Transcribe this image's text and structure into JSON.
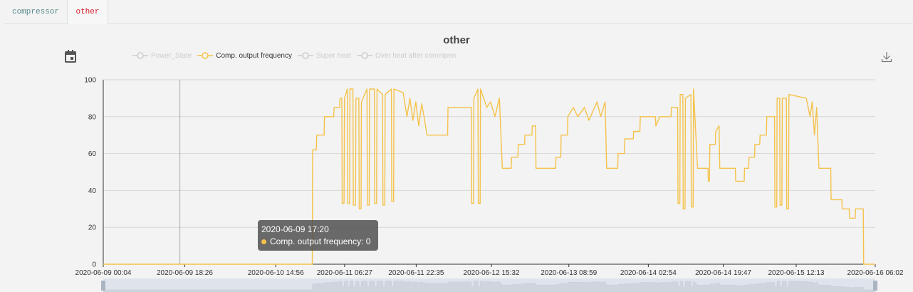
{
  "tabs": [
    {
      "label": "compressor",
      "active": false
    },
    {
      "label": "other",
      "active": true
    }
  ],
  "chart_title": "other",
  "icons": {
    "calendar": "calendar-icon",
    "download": "download-icon"
  },
  "colors": {
    "series_active": "#f4c24a",
    "legend_inactive": "#cccccc",
    "active_tab": "#d4202c"
  },
  "legend": [
    {
      "name": "Power_State",
      "active": false
    },
    {
      "name": "Comp. output frequency",
      "active": true
    },
    {
      "name": "Super heat",
      "active": false
    },
    {
      "name": "Over heat after commpen",
      "active": false
    }
  ],
  "tooltip": {
    "time": "2020-06-09 17:20",
    "series": "Comp. output frequency",
    "value": 0,
    "text": "Comp. output frequency: 0"
  },
  "chart_data": {
    "type": "line",
    "title": "other",
    "ylim": [
      0,
      100
    ],
    "yticks": [
      0,
      20,
      40,
      60,
      80,
      100
    ],
    "xticks": [
      "2020-06-09 00:04",
      "2020-06-09 18:26",
      "2020-06-10 14:56",
      "2020-06-11 06:27",
      "2020-06-11 22:35",
      "2020-06-12 15:32",
      "2020-06-13 08:59",
      "2020-06-14 02:54",
      "2020-06-14 19:47",
      "2020-06-15 12:13",
      "2020-06-16 06:02"
    ],
    "xlim": [
      "2020-06-09 00:04",
      "2020-06-16 06:02"
    ],
    "grid": true,
    "legend_position": "top",
    "hover_time": "2020-06-09 17:20",
    "series": [
      {
        "name": "Comp. output frequency",
        "points": [
          [
            "2020-06-09 00:04",
            0
          ],
          [
            "2020-06-10 23:10",
            0
          ],
          [
            "2020-06-10 23:15",
            62
          ],
          [
            "2020-06-11 00:05",
            62
          ],
          [
            "2020-06-11 00:10",
            70
          ],
          [
            "2020-06-11 01:50",
            70
          ],
          [
            "2020-06-11 01:55",
            80
          ],
          [
            "2020-06-11 04:00",
            80
          ],
          [
            "2020-06-11 04:05",
            85
          ],
          [
            "2020-06-11 05:20",
            85
          ],
          [
            "2020-06-11 05:25",
            90
          ],
          [
            "2020-06-11 05:50",
            90
          ],
          [
            "2020-06-11 05:55",
            33
          ],
          [
            "2020-06-11 06:20",
            33
          ],
          [
            "2020-06-11 06:25",
            90
          ],
          [
            "2020-06-11 07:05",
            95
          ],
          [
            "2020-06-11 07:10",
            33
          ],
          [
            "2020-06-11 07:35",
            33
          ],
          [
            "2020-06-11 07:40",
            95
          ],
          [
            "2020-06-11 08:20",
            95
          ],
          [
            "2020-06-11 08:25",
            32
          ],
          [
            "2020-06-11 08:55",
            32
          ],
          [
            "2020-06-11 09:00",
            90
          ],
          [
            "2020-06-11 09:40",
            90
          ],
          [
            "2020-06-11 09:45",
            30
          ],
          [
            "2020-06-11 10:10",
            30
          ],
          [
            "2020-06-11 10:15",
            88
          ],
          [
            "2020-06-11 11:30",
            95
          ],
          [
            "2020-06-11 11:35",
            32
          ],
          [
            "2020-06-11 12:00",
            32
          ],
          [
            "2020-06-11 12:05",
            95
          ],
          [
            "2020-06-11 13:10",
            95
          ],
          [
            "2020-06-11 13:15",
            33
          ],
          [
            "2020-06-11 13:40",
            33
          ],
          [
            "2020-06-11 13:45",
            95
          ],
          [
            "2020-06-11 15:00",
            92
          ],
          [
            "2020-06-11 15:05",
            32
          ],
          [
            "2020-06-11 15:30",
            32
          ],
          [
            "2020-06-11 15:35",
            92
          ],
          [
            "2020-06-11 17:00",
            95
          ],
          [
            "2020-06-11 17:05",
            34
          ],
          [
            "2020-06-11 17:30",
            34
          ],
          [
            "2020-06-11 17:35",
            95
          ],
          [
            "2020-06-11 19:40",
            93
          ],
          [
            "2020-06-11 20:30",
            80
          ],
          [
            "2020-06-11 21:10",
            90
          ],
          [
            "2020-06-11 21:50",
            78
          ],
          [
            "2020-06-11 22:30",
            88
          ],
          [
            "2020-06-11 23:10",
            75
          ],
          [
            "2020-06-11 23:50",
            87
          ],
          [
            "2020-06-12 00:30",
            78
          ],
          [
            "2020-06-12 01:00",
            70
          ],
          [
            "2020-06-12 05:40",
            70
          ],
          [
            "2020-06-12 05:45",
            85
          ],
          [
            "2020-06-12 11:00",
            85
          ],
          [
            "2020-06-12 11:05",
            33
          ],
          [
            "2020-06-12 11:30",
            33
          ],
          [
            "2020-06-12 11:35",
            90
          ],
          [
            "2020-06-12 12:30",
            95
          ],
          [
            "2020-06-12 12:35",
            33
          ],
          [
            "2020-06-12 13:00",
            33
          ],
          [
            "2020-06-12 13:05",
            95
          ],
          [
            "2020-06-12 14:30",
            85
          ],
          [
            "2020-06-12 15:20",
            88
          ],
          [
            "2020-06-12 16:20",
            80
          ],
          [
            "2020-06-12 17:20",
            90
          ],
          [
            "2020-06-12 18:00",
            52
          ],
          [
            "2020-06-12 20:00",
            52
          ],
          [
            "2020-06-12 20:05",
            58
          ],
          [
            "2020-06-12 21:30",
            58
          ],
          [
            "2020-06-12 21:35",
            65
          ],
          [
            "2020-06-12 23:00",
            65
          ],
          [
            "2020-06-12 23:05",
            70
          ],
          [
            "2020-06-13 00:40",
            70
          ],
          [
            "2020-06-13 00:45",
            75
          ],
          [
            "2020-06-13 01:30",
            75
          ],
          [
            "2020-06-13 01:35",
            52
          ],
          [
            "2020-06-13 06:00",
            52
          ],
          [
            "2020-06-13 06:05",
            58
          ],
          [
            "2020-06-13 07:10",
            58
          ],
          [
            "2020-06-13 07:15",
            70
          ],
          [
            "2020-06-13 08:40",
            70
          ],
          [
            "2020-06-13 08:45",
            80
          ],
          [
            "2020-06-13 10:00",
            85
          ],
          [
            "2020-06-13 11:00",
            80
          ],
          [
            "2020-06-13 12:30",
            85
          ],
          [
            "2020-06-13 13:30",
            78
          ],
          [
            "2020-06-13 15:20",
            88
          ],
          [
            "2020-06-13 16:10",
            80
          ],
          [
            "2020-06-13 17:10",
            88
          ],
          [
            "2020-06-13 17:30",
            52
          ],
          [
            "2020-06-13 20:00",
            52
          ],
          [
            "2020-06-13 20:05",
            60
          ],
          [
            "2020-06-13 21:30",
            60
          ],
          [
            "2020-06-13 21:35",
            68
          ],
          [
            "2020-06-13 23:30",
            68
          ],
          [
            "2020-06-13 23:35",
            72
          ],
          [
            "2020-06-14 01:00",
            72
          ],
          [
            "2020-06-14 01:05",
            80
          ],
          [
            "2020-06-14 04:30",
            80
          ],
          [
            "2020-06-14 04:35",
            75
          ],
          [
            "2020-06-14 05:30",
            80
          ],
          [
            "2020-06-14 08:00",
            80
          ],
          [
            "2020-06-14 08:05",
            85
          ],
          [
            "2020-06-14 09:30",
            85
          ],
          [
            "2020-06-14 09:35",
            33
          ],
          [
            "2020-06-14 10:00",
            33
          ],
          [
            "2020-06-14 10:05",
            92
          ],
          [
            "2020-06-14 10:40",
            92
          ],
          [
            "2020-06-14 10:45",
            30
          ],
          [
            "2020-06-14 11:10",
            30
          ],
          [
            "2020-06-14 11:15",
            90
          ],
          [
            "2020-06-14 12:30",
            92
          ],
          [
            "2020-06-14 12:35",
            31
          ],
          [
            "2020-06-14 13:00",
            31
          ],
          [
            "2020-06-14 13:05",
            95
          ],
          [
            "2020-06-14 14:00",
            52
          ],
          [
            "2020-06-14 16:20",
            52
          ],
          [
            "2020-06-14 16:25",
            45
          ],
          [
            "2020-06-14 16:40",
            45
          ],
          [
            "2020-06-14 16:45",
            65
          ],
          [
            "2020-06-14 18:00",
            65
          ],
          [
            "2020-06-14 18:05",
            72
          ],
          [
            "2020-06-14 18:50",
            75
          ],
          [
            "2020-06-14 19:00",
            52
          ],
          [
            "2020-06-14 22:30",
            52
          ],
          [
            "2020-06-14 22:35",
            45
          ],
          [
            "2020-06-15 00:30",
            45
          ],
          [
            "2020-06-15 00:35",
            52
          ],
          [
            "2020-06-15 01:30",
            52
          ],
          [
            "2020-06-15 01:35",
            58
          ],
          [
            "2020-06-15 02:50",
            58
          ],
          [
            "2020-06-15 02:55",
            65
          ],
          [
            "2020-06-15 04:00",
            65
          ],
          [
            "2020-06-15 04:05",
            70
          ],
          [
            "2020-06-15 05:30",
            70
          ],
          [
            "2020-06-15 05:35",
            80
          ],
          [
            "2020-06-15 07:20",
            80
          ],
          [
            "2020-06-15 07:25",
            31
          ],
          [
            "2020-06-15 07:50",
            31
          ],
          [
            "2020-06-15 07:55",
            90
          ],
          [
            "2020-06-15 08:30",
            90
          ],
          [
            "2020-06-15 08:35",
            32
          ],
          [
            "2020-06-15 09:00",
            32
          ],
          [
            "2020-06-15 09:05",
            90
          ],
          [
            "2020-06-15 10:00",
            90
          ],
          [
            "2020-06-15 10:05",
            30
          ],
          [
            "2020-06-15 10:30",
            30
          ],
          [
            "2020-06-15 10:35",
            92
          ],
          [
            "2020-06-15 14:30",
            90
          ],
          [
            "2020-06-15 15:20",
            80
          ],
          [
            "2020-06-15 15:50",
            88
          ],
          [
            "2020-06-15 16:20",
            70
          ],
          [
            "2020-06-15 16:50",
            85
          ],
          [
            "2020-06-15 17:20",
            52
          ],
          [
            "2020-06-15 20:00",
            52
          ],
          [
            "2020-06-15 20:05",
            35
          ],
          [
            "2020-06-15 22:30",
            35
          ],
          [
            "2020-06-15 22:35",
            30
          ],
          [
            "2020-06-16 00:10",
            30
          ],
          [
            "2020-06-16 00:15",
            25
          ],
          [
            "2020-06-16 01:30",
            25
          ],
          [
            "2020-06-16 01:35",
            30
          ],
          [
            "2020-06-16 03:20",
            30
          ],
          [
            "2020-06-16 03:25",
            0
          ],
          [
            "2020-06-16 06:02",
            0
          ]
        ]
      }
    ]
  }
}
